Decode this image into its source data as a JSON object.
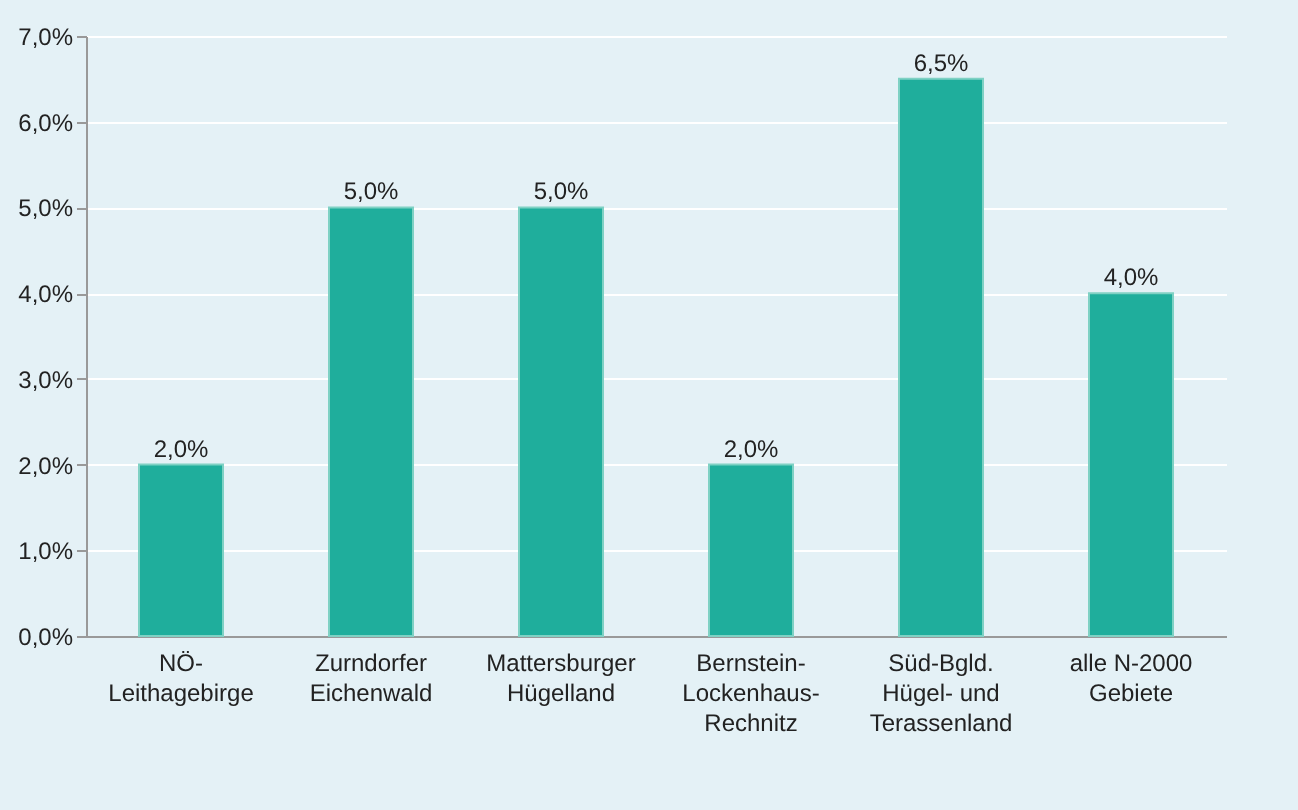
{
  "chart_data": {
    "type": "bar",
    "categories": [
      "NÖ-\nLeithagebirge",
      "Zurndorfer\nEichenwald",
      "Mattersburger\nHügelland",
      "Bernstein-\nLockenhaus-\nRechnitz",
      "Süd-Bgld.\nHügel- und\nTerassenland",
      "alle N-2000\nGebiete"
    ],
    "values": [
      2.0,
      5.0,
      5.0,
      2.0,
      6.5,
      4.0
    ],
    "value_labels": [
      "2,0%",
      "5,0%",
      "5,0%",
      "2,0%",
      "6,5%",
      "4,0%"
    ],
    "color": "#1fae9c",
    "ylim": [
      0,
      7
    ],
    "yticks": [
      {
        "value": 0,
        "label": "0,0%"
      },
      {
        "value": 1,
        "label": "1,0%"
      },
      {
        "value": 2,
        "label": "2,0%"
      },
      {
        "value": 3,
        "label": "3,0%"
      },
      {
        "value": 4,
        "label": "4,0%"
      },
      {
        "value": 5,
        "label": "5,0%"
      },
      {
        "value": 6,
        "label": "6,0%"
      },
      {
        "value": 7,
        "label": "7,0%"
      }
    ],
    "grid": "y"
  }
}
